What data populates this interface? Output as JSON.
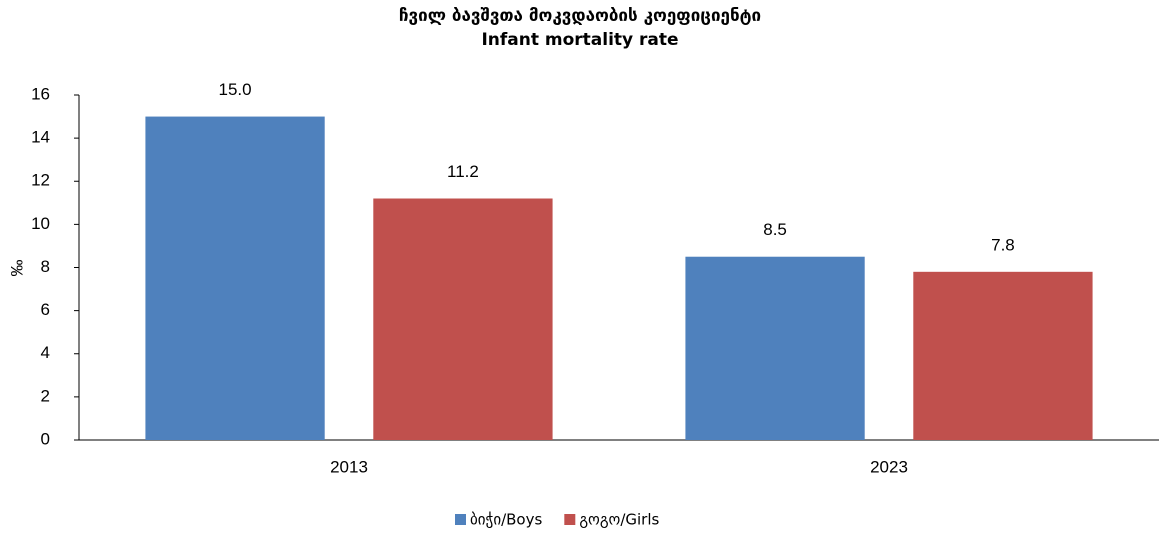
{
  "chart_data": {
    "type": "bar",
    "title": "ჩვილ ბავშვთა მოკვდაობის კოეფიციენტი",
    "subtitle": "Infant mortality rate",
    "y_label": "‰",
    "categories": [
      "2013",
      "2023"
    ],
    "series": [
      {
        "name": "ბიჭი/Boys",
        "color": "#4f81bd",
        "values": [
          15.0,
          8.5
        ],
        "value_labels": [
          "15.0",
          "8.5"
        ]
      },
      {
        "name": "გოგო/Girls",
        "color": "#c0504d",
        "values": [
          11.2,
          7.8
        ],
        "value_labels": [
          "11.2",
          "7.8"
        ]
      }
    ],
    "ylim": [
      0,
      16
    ],
    "yticks": [
      0,
      2,
      4,
      6,
      8,
      10,
      12,
      14,
      16
    ],
    "grid": false
  }
}
